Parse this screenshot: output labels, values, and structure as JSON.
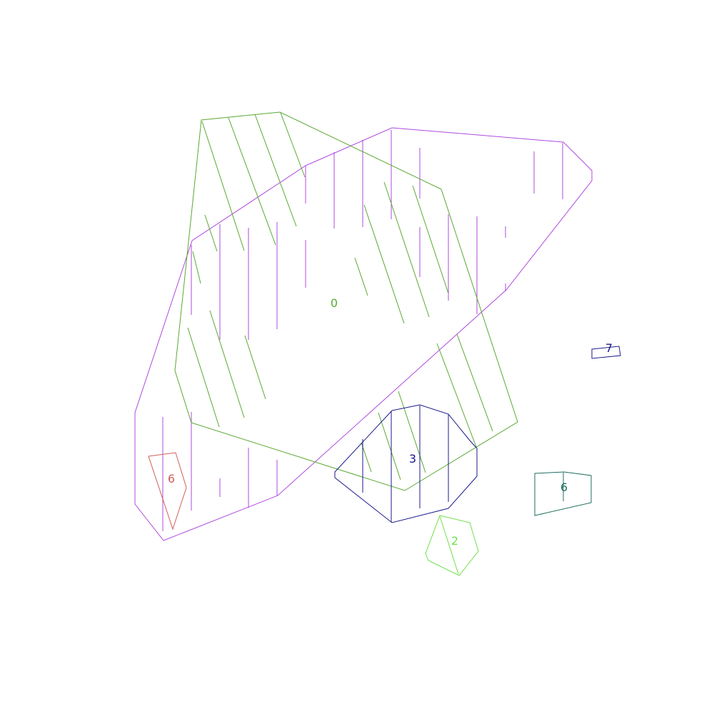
{
  "shapes": [
    {
      "name": "region-0-green",
      "label": "0",
      "color": "#5aa832",
      "hatch": "diagonal"
    },
    {
      "name": "region-unlabeled-violet",
      "label": "",
      "color": "#b04adf",
      "hatch": "vertical"
    },
    {
      "name": "region-3-navy",
      "label": "3",
      "color": "#1b1a8c",
      "hatch": "vertical"
    },
    {
      "name": "region-2-lightgreen",
      "label": "2",
      "color": "#6fe04a",
      "hatch": "diagonal"
    },
    {
      "name": "region-6-salmon",
      "label": "6",
      "color": "#d0605a",
      "hatch": "none"
    },
    {
      "name": "region-6-teal",
      "label": "6",
      "color": "#1f6e60",
      "hatch": "none"
    },
    {
      "name": "region-7-navy",
      "label": "7",
      "color": "#1b1a8c",
      "hatch": "none"
    }
  ]
}
